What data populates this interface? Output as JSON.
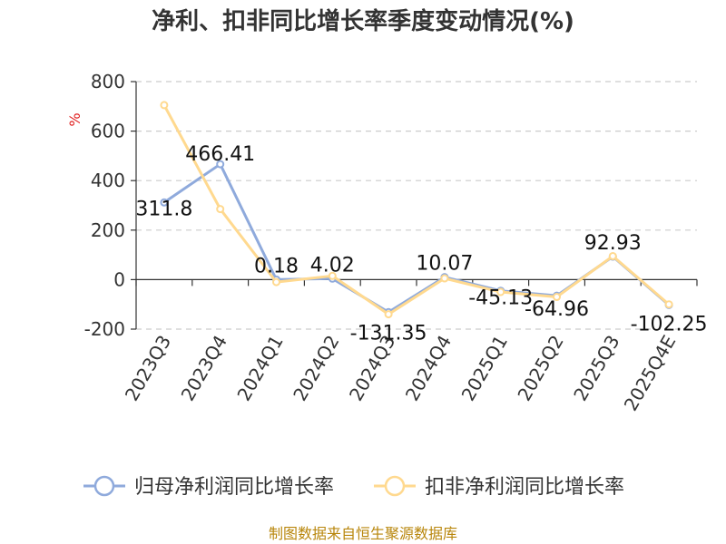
{
  "chart_data": {
    "type": "line",
    "title": "净利、扣非同比增长率季度变动情况(%)",
    "ylabel": "%",
    "ylim": [
      -200,
      800
    ],
    "yticks": [
      800,
      600,
      400,
      200,
      0,
      -200
    ],
    "categories": [
      "2023Q3",
      "2023Q4",
      "2024Q1",
      "2024Q2",
      "2024Q3",
      "2024Q4",
      "2025Q1",
      "2025Q2",
      "2025Q3",
      "2025Q4E"
    ],
    "series": [
      {
        "name": "归母净利润同比增长率",
        "color": "#8faadc",
        "values": [
          311.8,
          466.41,
          0.18,
          4.02,
          -131.35,
          10.07,
          -45.13,
          -64.96,
          92.93,
          -102.25
        ],
        "labels": [
          "311.8",
          "466.41",
          "0.18",
          "4.02",
          "-131.35",
          "10.07",
          "-45.13",
          "-64.96",
          "92.93",
          "-102.25"
        ]
      },
      {
        "name": "扣非净利润同比增长率",
        "color": "#ffd98f",
        "values": [
          705,
          285,
          -10,
          15,
          -140,
          5,
          -50,
          -70,
          95,
          -100
        ]
      }
    ],
    "grid": true,
    "legend_position": "bottom"
  },
  "source": "制图数据来自恒生聚源数据库"
}
